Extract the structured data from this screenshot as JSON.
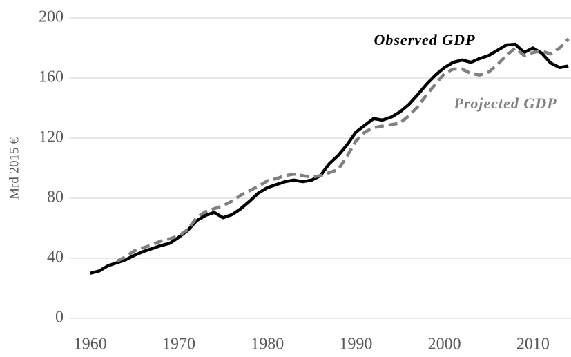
{
  "chart_data": {
    "type": "line",
    "y_axis_label": "Mrd 2015 €",
    "x": [
      1960,
      1961,
      1962,
      1963,
      1964,
      1965,
      1966,
      1967,
      1968,
      1969,
      1970,
      1971,
      1972,
      1973,
      1974,
      1975,
      1976,
      1977,
      1978,
      1979,
      1980,
      1981,
      1982,
      1983,
      1984,
      1985,
      1986,
      1987,
      1988,
      1989,
      1990,
      1991,
      1992,
      1993,
      1994,
      1995,
      1996,
      1997,
      1998,
      1999,
      2000,
      2001,
      2002,
      2003,
      2004,
      2005,
      2006,
      2007,
      2008,
      2009,
      2010,
      2011,
      2012,
      2013,
      2014
    ],
    "series": [
      {
        "name": "Observed GDP",
        "color": "#000000",
        "dashed": false,
        "values": [
          30,
          31.5,
          35,
          37,
          39,
          42,
          44.5,
          46.5,
          48.5,
          50,
          54,
          58.5,
          65,
          68.5,
          70.5,
          67,
          69,
          73,
          78,
          83.5,
          87,
          89,
          91,
          92,
          91,
          92,
          95,
          103,
          108.5,
          115.5,
          124,
          128.5,
          133,
          132,
          134,
          137.5,
          142.5,
          149,
          156,
          162,
          167,
          170.5,
          172,
          170.5,
          173,
          175,
          178.5,
          182,
          182.5,
          177,
          180,
          176.5,
          170,
          167,
          168
        ]
      },
      {
        "name": "Projected GDP",
        "color": "#808080",
        "dashed": true,
        "values": [
          null,
          null,
          null,
          38,
          41,
          45,
          47,
          49,
          51.5,
          53,
          55,
          59,
          67,
          71,
          73,
          75,
          78,
          82,
          85,
          88,
          91.5,
          93,
          95,
          96,
          95,
          94,
          95,
          97,
          99,
          108,
          118,
          124,
          127,
          128,
          129,
          130,
          135,
          141,
          149,
          156,
          163,
          166,
          166,
          163,
          162,
          164,
          169,
          175,
          180,
          175,
          177,
          178,
          176,
          180,
          186
        ]
      }
    ],
    "xlim": [
      1957.6,
      2014.3
    ],
    "xticks": [
      1960,
      1970,
      1980,
      1990,
      2000,
      2010
    ],
    "ylim": [
      0,
      200
    ],
    "yticks": [
      0,
      40,
      80,
      120,
      160,
      200
    ],
    "grid": true
  }
}
